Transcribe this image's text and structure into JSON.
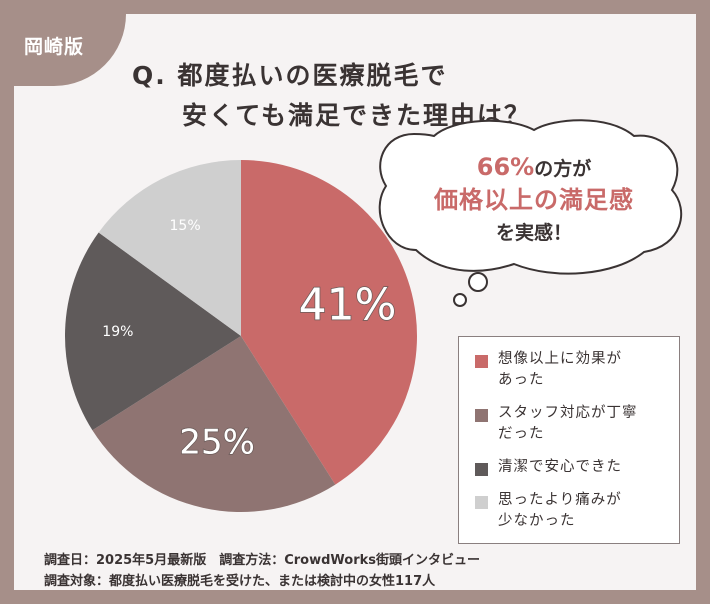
{
  "tag": "岡崎版",
  "title": {
    "line1": "Q. 都度払いの医療脱毛で",
    "line2": "安くても満足できた理由は？"
  },
  "bubble": {
    "percent": "66%",
    "line1_rest": "の方が",
    "line2": "価格以上の満足感",
    "line3": "を実感！"
  },
  "legend": [
    {
      "label": "想像以上に効果が\nあった",
      "color": "#c96a69"
    },
    {
      "label": "スタッフ対応が丁寧\nだった",
      "color": "#8f7472"
    },
    {
      "label": "清潔で安心できた",
      "color": "#5f5a5a"
    },
    {
      "label": "思ったより痛みが\n少なかった",
      "color": "#cfcfcf"
    }
  ],
  "footer": {
    "line1": "調査日：2025年5月最新版　調査方法：CrowdWorks街頭インタビュー",
    "line2": "調査対象：都度払い医療脱毛を受けた、または検討中の女性117人"
  },
  "chart_data": {
    "type": "pie",
    "categories": [
      "想像以上に効果があった",
      "スタッフ対応が丁寧だった",
      "清潔で安心できた",
      "思ったより痛みが少なかった"
    ],
    "values": [
      41,
      25,
      19,
      15
    ],
    "labels": [
      "41%",
      "25%",
      "19%",
      "15%"
    ],
    "colors": [
      "#c96a69",
      "#8f7472",
      "#5f5a5a",
      "#cfcfcf"
    ],
    "start": "12 o'clock",
    "direction": "clockwise",
    "legend_position": "right"
  }
}
